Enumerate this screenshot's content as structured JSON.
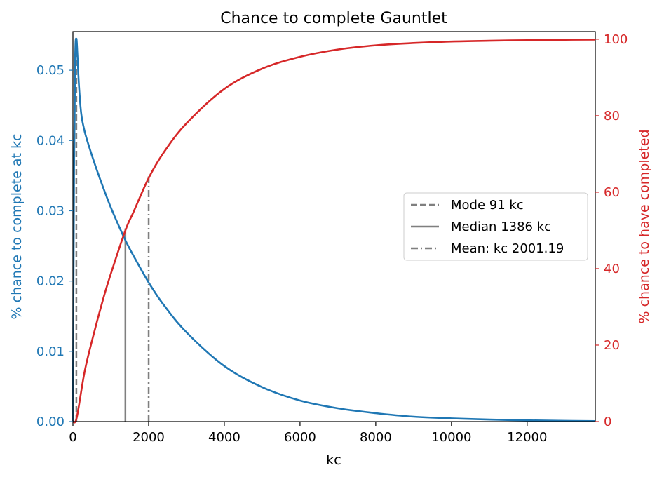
{
  "chart_data": {
    "type": "line",
    "title": "Chance to complete Gauntlet",
    "xlabel": "kc",
    "ylabel_left": "% chance to complete at kc",
    "ylabel_right": "% chance to have completed",
    "xlim": [
      0,
      13800
    ],
    "ylim_left": [
      0,
      0.0555
    ],
    "ylim_right": [
      0,
      102
    ],
    "x_ticks": [
      "0",
      "2000",
      "4000",
      "6000",
      "8000",
      "10000",
      "12000"
    ],
    "x_tick_values": [
      0,
      2000,
      4000,
      6000,
      8000,
      10000,
      12000
    ],
    "y_left_ticks": [
      "0.00",
      "0.01",
      "0.02",
      "0.03",
      "0.04",
      "0.05"
    ],
    "y_left_tick_values": [
      0,
      0.01,
      0.02,
      0.03,
      0.04,
      0.05
    ],
    "y_right_ticks": [
      "0",
      "20",
      "40",
      "60",
      "80",
      "100"
    ],
    "y_right_tick_values": [
      0,
      20,
      40,
      60,
      80,
      100
    ],
    "grid": false,
    "legend_position": "center-right",
    "colors": {
      "left_axis": "#1f77b4",
      "right_axis": "#d62728",
      "markers": "#7f7f7f"
    },
    "series": [
      {
        "axis": "left",
        "color": "#1f77b4",
        "x": [
          0,
          30,
          60,
          91,
          120,
          160,
          220,
          300,
          400,
          600,
          800,
          1000,
          1200,
          1386,
          1600,
          2001,
          2400,
          3000,
          4000,
          5000,
          6000,
          7000,
          8000,
          9000,
          10000,
          11000,
          12000,
          13000,
          13800
        ],
        "y": [
          0.0,
          0.0361,
          0.0519,
          0.0545,
          0.0521,
          0.0478,
          0.0438,
          0.0415,
          0.0396,
          0.0363,
          0.0333,
          0.0305,
          0.028,
          0.0258,
          0.0236,
          0.0198,
          0.0166,
          0.0127,
          0.0079,
          0.0049,
          0.003,
          0.0019,
          0.0012,
          0.0007,
          0.00046,
          0.00029,
          0.00018,
          0.00011,
          7e-05
        ]
      },
      {
        "axis": "right",
        "color": "#d62728",
        "x": [
          0,
          100,
          300,
          500,
          800,
          1000,
          1386,
          1600,
          2001,
          2400,
          3000,
          4000,
          5000,
          6000,
          7000,
          8000,
          9000,
          10000,
          11000,
          12000,
          13000,
          13800
        ],
        "y": [
          0,
          1.0,
          12.6,
          21.0,
          32.1,
          38.6,
          50.0,
          54.8,
          63.7,
          70.4,
          78.0,
          87.0,
          92.3,
          95.4,
          97.3,
          98.4,
          99.0,
          99.4,
          99.6,
          99.75,
          99.85,
          99.9
        ]
      }
    ],
    "markers": [
      {
        "label": "Mode 91 kc",
        "x": 91,
        "style": "dashed",
        "height_left": 0.0545
      },
      {
        "label": "Median 1386 kc",
        "x": 1386,
        "style": "solid",
        "height_left": 0.0275
      },
      {
        "label": "Mean: kc 2001.19",
        "x": 2001.19,
        "style": "dashdot",
        "height_left": 0.0349
      }
    ]
  }
}
